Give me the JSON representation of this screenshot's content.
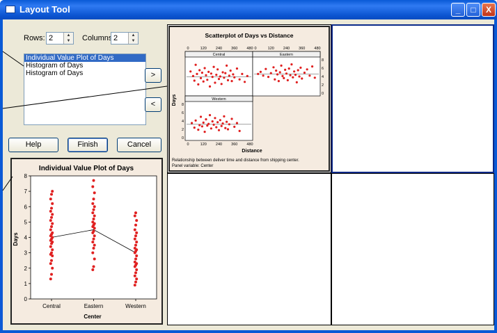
{
  "window": {
    "title": "Layout Tool",
    "title_icon": "window-icon",
    "controls": {
      "minimize": "_",
      "maximize": "□",
      "close": "X"
    }
  },
  "rows": {
    "label": "Rows:",
    "value": "2"
  },
  "columns": {
    "label": "Columns:",
    "value": "2"
  },
  "graph_list": {
    "items": [
      {
        "label": "Individual Value Plot of Days",
        "selected": true
      },
      {
        "label": "Histogram of Days",
        "selected": false
      },
      {
        "label": "Histogram of Days",
        "selected": false
      }
    ]
  },
  "buttons": {
    "move_right": ">",
    "move_left": "<",
    "help": "Help",
    "finish": "Finish",
    "cancel": "Cancel"
  },
  "colors": {
    "title_bar": "#0a5ad6",
    "dialog_face": "#ece9d8",
    "selection": "#316ac5",
    "graph_background": "#f5ebe0",
    "points": "#e02020"
  },
  "preview": {
    "title": "Individual Value Plot of Days",
    "xlabel": "Center",
    "ylabel": "Days"
  },
  "scatter_panel": {
    "title": "Scatterplot of Days vs Distance",
    "xlabel": "Distance",
    "ylabel": "Days",
    "panels": [
      "Central",
      "Eastern",
      "Western"
    ],
    "note_line1": "Relationship between deliver time and distance from shipping center.",
    "note_line2": "Panel variable: Center"
  },
  "chart_data": [
    {
      "type": "scatter",
      "chart": "individual value plot",
      "title": "Individual Value Plot of Days",
      "xlabel": "Center",
      "ylabel": "Days",
      "categories": [
        "Central",
        "Eastern",
        "Western"
      ],
      "yticks": [
        0,
        1,
        2,
        3,
        4,
        5,
        6,
        7,
        8
      ],
      "ylim": [
        0,
        8
      ],
      "mean_line": [
        4.0,
        4.5,
        3.0
      ],
      "series": [
        {
          "name": "Central",
          "values": [
            1.3,
            1.6,
            2.0,
            2.3,
            2.5,
            2.8,
            2.9,
            3.0,
            3.2,
            3.4,
            3.6,
            3.7,
            3.8,
            3.9,
            4.0,
            4.1,
            4.2,
            4.3,
            4.5,
            4.7,
            4.9,
            5.1,
            5.3,
            5.5,
            5.7,
            5.9,
            6.2,
            6.5,
            6.8,
            7.0
          ]
        },
        {
          "name": "Eastern",
          "values": [
            1.9,
            2.1,
            2.6,
            3.0,
            3.3,
            3.5,
            3.7,
            3.9,
            4.1,
            4.3,
            4.4,
            4.6,
            4.7,
            4.8,
            4.9,
            5.0,
            5.2,
            5.4,
            5.6,
            5.8,
            6.0,
            6.2,
            6.5,
            6.9,
            7.3,
            7.7
          ]
        },
        {
          "name": "Western",
          "values": [
            0.9,
            1.1,
            1.3,
            1.5,
            1.7,
            1.9,
            2.1,
            2.2,
            2.3,
            2.4,
            2.6,
            2.8,
            3.0,
            3.1,
            3.2,
            3.3,
            3.5,
            3.7,
            3.9,
            4.1,
            4.3,
            4.5,
            4.8,
            5.1,
            5.4,
            5.6
          ]
        }
      ]
    },
    {
      "type": "scatter",
      "title": "Scatterplot of Days vs Distance",
      "xlabel": "Distance",
      "ylabel": "Days",
      "xticks": [
        0,
        120,
        240,
        360,
        480
      ],
      "yticks": [
        0,
        2,
        4,
        6,
        8
      ],
      "xlim": [
        0,
        480
      ],
      "ylim": [
        0,
        8
      ],
      "panels": [
        {
          "name": "Central",
          "fit": 3.9,
          "points": [
            [
              20,
              5.2
            ],
            [
              40,
              4.1
            ],
            [
              50,
              3.0
            ],
            [
              60,
              6.8
            ],
            [
              70,
              4.6
            ],
            [
              80,
              2.1
            ],
            [
              90,
              5.5
            ],
            [
              100,
              3.6
            ],
            [
              110,
              4.9
            ],
            [
              120,
              2.8
            ],
            [
              130,
              6.0
            ],
            [
              140,
              4.3
            ],
            [
              150,
              3.2
            ],
            [
              160,
              5.1
            ],
            [
              170,
              1.6
            ],
            [
              180,
              4.7
            ],
            [
              190,
              3.9
            ],
            [
              200,
              6.3
            ],
            [
              210,
              2.5
            ],
            [
              220,
              4.4
            ],
            [
              230,
              5.7
            ],
            [
              240,
              3.4
            ],
            [
              250,
              4.0
            ],
            [
              260,
              2.2
            ],
            [
              270,
              5.0
            ],
            [
              280,
              3.7
            ],
            [
              290,
              4.8
            ],
            [
              300,
              6.6
            ],
            [
              310,
              3.1
            ],
            [
              320,
              4.2
            ],
            [
              330,
              5.4
            ],
            [
              340,
              2.9
            ],
            [
              350,
              4.5
            ],
            [
              360,
              3.8
            ],
            [
              380,
              5.9
            ],
            [
              400,
              3.3
            ],
            [
              420,
              4.6
            ],
            [
              440,
              2.7
            ],
            [
              460,
              4.1
            ]
          ]
        },
        {
          "name": "Eastern",
          "fit": 4.6,
          "points": [
            [
              20,
              4.6
            ],
            [
              40,
              5.1
            ],
            [
              60,
              4.2
            ],
            [
              80,
              5.8
            ],
            [
              100,
              3.9
            ],
            [
              120,
              4.8
            ],
            [
              140,
              6.2
            ],
            [
              150,
              3.3
            ],
            [
              160,
              5.4
            ],
            [
              170,
              4.5
            ],
            [
              180,
              2.9
            ],
            [
              190,
              5.0
            ],
            [
              200,
              6.6
            ],
            [
              210,
              4.1
            ],
            [
              220,
              3.6
            ],
            [
              230,
              5.6
            ],
            [
              240,
              4.7
            ],
            [
              250,
              3.1
            ],
            [
              260,
              5.9
            ],
            [
              270,
              4.3
            ],
            [
              280,
              6.9
            ],
            [
              290,
              3.8
            ],
            [
              300,
              5.2
            ],
            [
              310,
              4.4
            ],
            [
              320,
              2.6
            ],
            [
              330,
              5.5
            ],
            [
              340,
              4.0
            ],
            [
              350,
              6.1
            ],
            [
              360,
              3.5
            ],
            [
              380,
              4.9
            ],
            [
              400,
              5.7
            ],
            [
              420,
              4.2
            ],
            [
              440,
              6.4
            ],
            [
              460,
              3.7
            ]
          ]
        },
        {
          "name": "Western",
          "fit": 3.2,
          "points": [
            [
              30,
              3.5
            ],
            [
              50,
              2.4
            ],
            [
              60,
              4.1
            ],
            [
              80,
              1.9
            ],
            [
              90,
              3.0
            ],
            [
              100,
              5.0
            ],
            [
              110,
              2.7
            ],
            [
              120,
              3.6
            ],
            [
              130,
              1.4
            ],
            [
              140,
              4.4
            ],
            [
              150,
              2.9
            ],
            [
              160,
              3.3
            ],
            [
              170,
              5.4
            ],
            [
              180,
              2.2
            ],
            [
              190,
              3.9
            ],
            [
              200,
              3.1
            ],
            [
              210,
              4.7
            ],
            [
              220,
              2.5
            ],
            [
              230,
              3.7
            ],
            [
              240,
              1.8
            ],
            [
              250,
              4.2
            ],
            [
              260,
              2.8
            ],
            [
              270,
              3.4
            ],
            [
              280,
              5.1
            ],
            [
              290,
              2.3
            ],
            [
              300,
              3.8
            ],
            [
              310,
              2.0
            ],
            [
              320,
              3.2
            ],
            [
              340,
              4.5
            ],
            [
              360,
              2.6
            ],
            [
              380,
              3.5
            ],
            [
              400,
              1.6
            ]
          ]
        }
      ]
    }
  ]
}
